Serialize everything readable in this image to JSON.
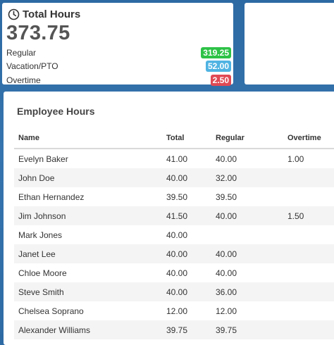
{
  "summary": {
    "title": "Total Hours",
    "total": "373.75",
    "metrics": [
      {
        "label": "Regular",
        "value": "319.25",
        "color": "#2dc246"
      },
      {
        "label": "Vacation/PTO",
        "value": "52.00",
        "color": "#4fb3e2"
      },
      {
        "label": "Overtime",
        "value": "2.50",
        "color": "#e04a54"
      }
    ],
    "icon": "clock-icon"
  },
  "employee_hours": {
    "title": "Employee Hours",
    "columns": [
      "Name",
      "Total",
      "Regular",
      "Overtime"
    ],
    "rows": [
      {
        "name": "Evelyn Baker",
        "total": "41.00",
        "regular": "40.00",
        "overtime": "1.00"
      },
      {
        "name": "John Doe",
        "total": "40.00",
        "regular": "32.00",
        "overtime": ""
      },
      {
        "name": "Ethan Hernandez",
        "total": "39.50",
        "regular": "39.50",
        "overtime": ""
      },
      {
        "name": "Jim Johnson",
        "total": "41.50",
        "regular": "40.00",
        "overtime": "1.50"
      },
      {
        "name": "Mark Jones",
        "total": "40.00",
        "regular": "",
        "overtime": ""
      },
      {
        "name": "Janet Lee",
        "total": "40.00",
        "regular": "40.00",
        "overtime": ""
      },
      {
        "name": "Chloe Moore",
        "total": "40.00",
        "regular": "40.00",
        "overtime": ""
      },
      {
        "name": "Steve Smith",
        "total": "40.00",
        "regular": "36.00",
        "overtime": ""
      },
      {
        "name": "Chelsea Soprano",
        "total": "12.00",
        "regular": "12.00",
        "overtime": ""
      },
      {
        "name": "Alexander Williams",
        "total": "39.75",
        "regular": "39.75",
        "overtime": ""
      }
    ]
  },
  "colors": {
    "background": "#2f6ca6",
    "regular": "#2dc246",
    "vacation": "#4fb3e2",
    "overtime": "#e04a54"
  }
}
